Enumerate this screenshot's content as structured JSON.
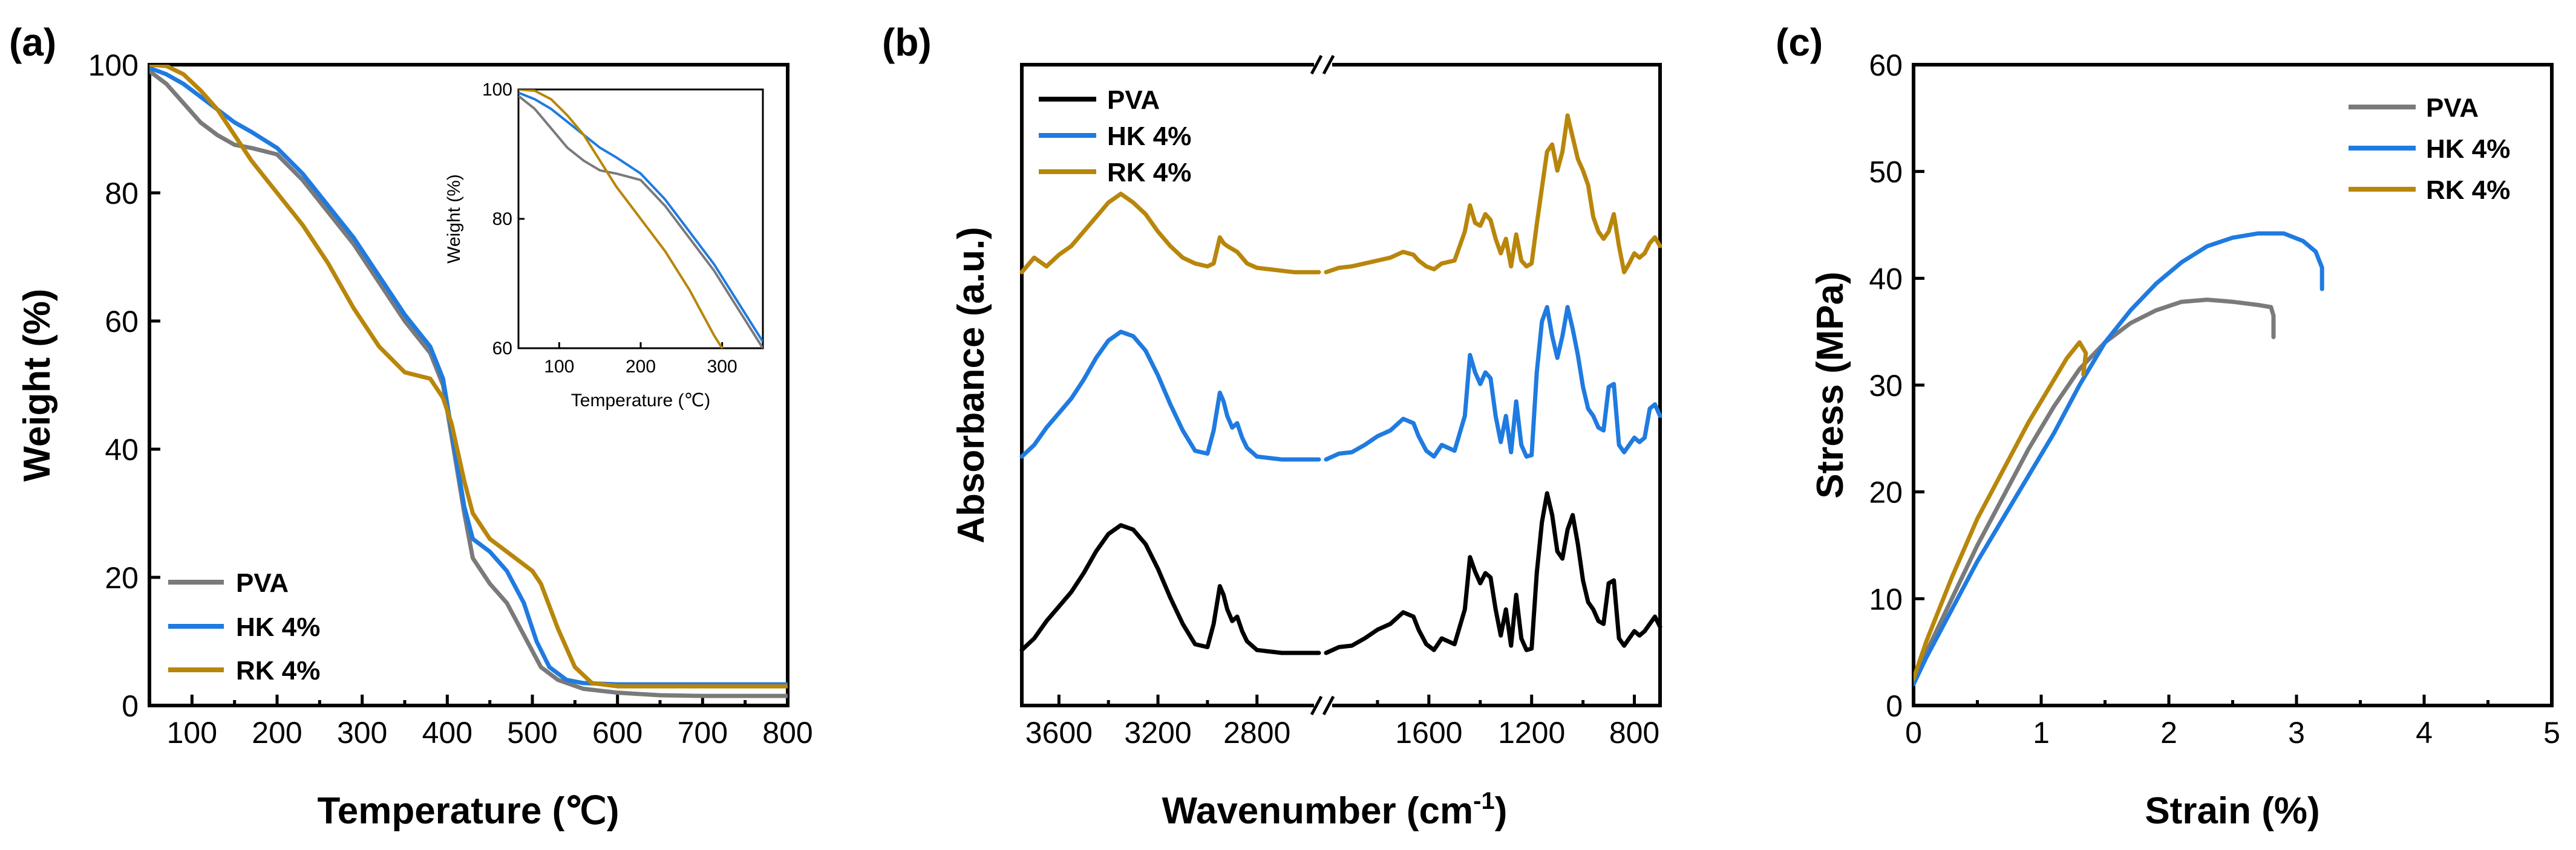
{
  "colors": {
    "PVA": "#7a7a7a",
    "HK": "#1f7be0",
    "RK": "#b8860b",
    "PVA_ftir": "#000000"
  },
  "chart_data": [
    {
      "panel_label": "(a)",
      "type": "line",
      "xlabel": "Temperature (℃)",
      "ylabel": "Weight (%)",
      "xlim": [
        50,
        800
      ],
      "ylim": [
        0,
        100
      ],
      "xticks": [
        100,
        200,
        300,
        400,
        500,
        600,
        700,
        800
      ],
      "yticks": [
        0,
        20,
        40,
        60,
        80,
        100
      ],
      "legend": [
        "PVA",
        "HK 4%",
        "RK 4%"
      ],
      "series": [
        {
          "name": "PVA",
          "x": [
            50,
            70,
            90,
            110,
            130,
            150,
            170,
            200,
            230,
            260,
            290,
            320,
            350,
            380,
            395,
            405,
            420,
            430,
            450,
            470,
            490,
            510,
            530,
            560,
            600,
            650,
            700,
            800
          ],
          "y": [
            99,
            97,
            94,
            91,
            89,
            87.5,
            87,
            86,
            82,
            77,
            72,
            66,
            60,
            55,
            50,
            42,
            30,
            23,
            19,
            16,
            11,
            6,
            4,
            2.6,
            2,
            1.6,
            1.5,
            1.5
          ]
        },
        {
          "name": "HK 4%",
          "x": [
            50,
            70,
            90,
            110,
            130,
            150,
            170,
            200,
            230,
            260,
            290,
            320,
            350,
            380,
            395,
            405,
            420,
            430,
            450,
            470,
            490,
            505,
            520,
            540,
            560,
            600,
            700,
            800
          ],
          "y": [
            99.5,
            98.5,
            97,
            95,
            93,
            91,
            89.5,
            87,
            83,
            78,
            73,
            67,
            61,
            56,
            51,
            43,
            31,
            26,
            24,
            21,
            16,
            10,
            6,
            4,
            3.5,
            3.3,
            3.3,
            3.3
          ]
        },
        {
          "name": "RK 4%",
          "x": [
            50,
            70,
            90,
            110,
            130,
            150,
            170,
            200,
            230,
            260,
            290,
            320,
            350,
            380,
            395,
            405,
            420,
            430,
            450,
            470,
            490,
            500,
            510,
            530,
            550,
            570,
            600,
            700,
            800
          ],
          "y": [
            100,
            99.8,
            98.5,
            96,
            93,
            89,
            85,
            80,
            75,
            69,
            62,
            56,
            52,
            51,
            48,
            44,
            35,
            30,
            26,
            24,
            22,
            21,
            19,
            12,
            6,
            3.5,
            3,
            3,
            3
          ]
        }
      ]
    },
    {
      "panel_label": "",
      "type": "line",
      "inset_of": "(a)",
      "xlabel": "Temperature (℃)",
      "ylabel": "Weight (%)",
      "xlim": [
        50,
        350
      ],
      "ylim": [
        60,
        100
      ],
      "xticks": [
        100,
        200,
        300
      ],
      "yticks": [
        60,
        80,
        100
      ],
      "series": [
        {
          "name": "PVA",
          "x": [
            50,
            70,
            90,
            110,
            130,
            150,
            170,
            200,
            230,
            260,
            290,
            320,
            350
          ],
          "y": [
            99,
            97,
            94,
            91,
            89,
            87.5,
            87,
            86,
            82,
            77,
            72,
            66,
            60
          ]
        },
        {
          "name": "HK 4%",
          "x": [
            50,
            70,
            90,
            110,
            130,
            150,
            170,
            200,
            230,
            260,
            290,
            320,
            350
          ],
          "y": [
            99.5,
            98.5,
            97,
            95,
            93,
            91,
            89.5,
            87,
            83,
            78,
            73,
            67,
            61
          ]
        },
        {
          "name": "RK 4%",
          "x": [
            50,
            70,
            90,
            110,
            130,
            150,
            170,
            200,
            230,
            260,
            290,
            320,
            350
          ],
          "y": [
            100,
            99.8,
            98.5,
            96,
            93,
            89,
            85,
            80,
            75,
            69,
            62,
            56,
            52
          ]
        }
      ]
    },
    {
      "panel_label": "(b)",
      "type": "line",
      "xlabel": "Wavenumber (cm",
      "xlabel_sup": "-1",
      "xlabel_end": ")",
      "ylabel": "Absorbance (a.u.)",
      "segments": [
        [
          3750,
          2550
        ],
        [
          2000,
          700
        ]
      ],
      "xticks": [
        3600,
        3200,
        2800,
        1600,
        1200,
        800
      ],
      "yticks": [],
      "legend": [
        "PVA",
        "HK 4%",
        "RK 4%"
      ],
      "series": [
        {
          "name": "PVA",
          "baseline": 0,
          "x": [
            3750,
            3700,
            3650,
            3600,
            3550,
            3500,
            3450,
            3400,
            3350,
            3300,
            3250,
            3200,
            3150,
            3100,
            3050,
            3000,
            2975,
            2950,
            2935,
            2920,
            2900,
            2880,
            2860,
            2840,
            2800,
            2750,
            2700,
            2650,
            2600,
            2550,
            2000,
            1950,
            1900,
            1850,
            1800,
            1750,
            1700,
            1660,
            1640,
            1610,
            1580,
            1550,
            1500,
            1460,
            1440,
            1420,
            1400,
            1380,
            1360,
            1340,
            1320,
            1300,
            1280,
            1260,
            1240,
            1220,
            1200,
            1180,
            1160,
            1140,
            1120,
            1100,
            1080,
            1060,
            1040,
            1020,
            1000,
            980,
            960,
            940,
            920,
            900,
            880,
            860,
            840,
            820,
            800,
            780,
            760,
            740,
            720,
            700
          ],
          "y": [
            0.02,
            0.1,
            0.22,
            0.32,
            0.42,
            0.55,
            0.7,
            0.82,
            0.88,
            0.85,
            0.75,
            0.58,
            0.38,
            0.2,
            0.06,
            0.04,
            0.2,
            0.46,
            0.4,
            0.3,
            0.22,
            0.25,
            0.15,
            0.08,
            0.02,
            0.01,
            0,
            0,
            0,
            0,
            0,
            0.04,
            0.05,
            0.1,
            0.16,
            0.2,
            0.28,
            0.25,
            0.16,
            0.06,
            0.02,
            0.1,
            0.06,
            0.3,
            0.66,
            0.56,
            0.48,
            0.55,
            0.52,
            0.3,
            0.12,
            0.3,
            0.05,
            0.4,
            0.1,
            0.02,
            0.03,
            0.55,
            0.9,
            1.1,
            0.95,
            0.7,
            0.65,
            0.85,
            0.95,
            0.75,
            0.5,
            0.35,
            0.3,
            0.22,
            0.2,
            0.48,
            0.5,
            0.1,
            0.05,
            0.1,
            0.15,
            0.12,
            0.15,
            0.2,
            0.25,
            0.18
          ]
        },
        {
          "name": "HK 4%",
          "baseline": 1,
          "x": [
            3750,
            3700,
            3650,
            3600,
            3550,
            3500,
            3450,
            3400,
            3350,
            3300,
            3250,
            3200,
            3150,
            3100,
            3050,
            3000,
            2975,
            2950,
            2935,
            2920,
            2900,
            2880,
            2860,
            2840,
            2800,
            2750,
            2700,
            2650,
            2600,
            2550,
            2000,
            1950,
            1900,
            1850,
            1800,
            1750,
            1700,
            1660,
            1640,
            1610,
            1580,
            1550,
            1500,
            1460,
            1440,
            1420,
            1400,
            1380,
            1360,
            1340,
            1320,
            1300,
            1280,
            1260,
            1240,
            1220,
            1200,
            1180,
            1160,
            1140,
            1120,
            1100,
            1080,
            1060,
            1040,
            1020,
            1000,
            980,
            960,
            940,
            920,
            900,
            880,
            860,
            840,
            820,
            800,
            780,
            760,
            740,
            720,
            700
          ],
          "y": [
            0.02,
            0.1,
            0.22,
            0.32,
            0.42,
            0.55,
            0.7,
            0.82,
            0.88,
            0.85,
            0.75,
            0.58,
            0.38,
            0.2,
            0.06,
            0.04,
            0.2,
            0.46,
            0.4,
            0.3,
            0.22,
            0.25,
            0.15,
            0.08,
            0.02,
            0.01,
            0,
            0,
            0,
            0,
            0,
            0.04,
            0.05,
            0.1,
            0.16,
            0.2,
            0.28,
            0.25,
            0.16,
            0.06,
            0.02,
            0.1,
            0.06,
            0.3,
            0.72,
            0.6,
            0.52,
            0.6,
            0.56,
            0.3,
            0.12,
            0.3,
            0.05,
            0.4,
            0.1,
            0.02,
            0.03,
            0.6,
            0.95,
            1.05,
            0.85,
            0.7,
            0.85,
            1.05,
            0.9,
            0.72,
            0.5,
            0.35,
            0.3,
            0.22,
            0.2,
            0.5,
            0.52,
            0.1,
            0.05,
            0.1,
            0.15,
            0.12,
            0.15,
            0.35,
            0.38,
            0.3
          ]
        },
        {
          "name": "RK 4%",
          "baseline": 2,
          "x": [
            3750,
            3700,
            3650,
            3600,
            3550,
            3500,
            3450,
            3400,
            3350,
            3300,
            3250,
            3200,
            3150,
            3100,
            3050,
            3000,
            2975,
            2950,
            2935,
            2920,
            2900,
            2880,
            2860,
            2840,
            2800,
            2750,
            2700,
            2650,
            2600,
            2550,
            2000,
            1950,
            1900,
            1850,
            1800,
            1750,
            1700,
            1660,
            1640,
            1610,
            1580,
            1550,
            1500,
            1460,
            1440,
            1420,
            1400,
            1380,
            1360,
            1340,
            1320,
            1300,
            1280,
            1260,
            1240,
            1220,
            1200,
            1180,
            1160,
            1140,
            1120,
            1100,
            1080,
            1060,
            1040,
            1020,
            1000,
            980,
            960,
            940,
            920,
            900,
            880,
            860,
            840,
            820,
            800,
            780,
            760,
            740,
            720,
            700
          ],
          "y": [
            0.02,
            0.12,
            0.06,
            0.14,
            0.2,
            0.3,
            0.4,
            0.5,
            0.56,
            0.5,
            0.42,
            0.3,
            0.2,
            0.12,
            0.08,
            0.06,
            0.08,
            0.26,
            0.22,
            0.2,
            0.18,
            0.16,
            0.12,
            0.08,
            0.05,
            0.04,
            0.03,
            0.02,
            0.02,
            0.02,
            0.02,
            0.05,
            0.06,
            0.08,
            0.1,
            0.12,
            0.16,
            0.14,
            0.1,
            0.06,
            0.04,
            0.08,
            0.1,
            0.3,
            0.48,
            0.36,
            0.34,
            0.42,
            0.38,
            0.25,
            0.15,
            0.25,
            0.06,
            0.28,
            0.1,
            0.06,
            0.08,
            0.35,
            0.6,
            0.85,
            0.9,
            0.72,
            0.85,
            1.1,
            0.95,
            0.8,
            0.72,
            0.62,
            0.4,
            0.3,
            0.25,
            0.3,
            0.42,
            0.2,
            0.02,
            0.08,
            0.15,
            0.12,
            0.15,
            0.22,
            0.26,
            0.2
          ]
        }
      ]
    },
    {
      "panel_label": "(c)",
      "type": "line",
      "xlabel": "Strain (%)",
      "ylabel": "Stress (MPa)",
      "xlim": [
        0,
        5
      ],
      "ylim": [
        0,
        60
      ],
      "xticks": [
        0,
        1,
        2,
        3,
        4,
        5
      ],
      "yticks": [
        0,
        10,
        20,
        30,
        40,
        50,
        60
      ],
      "legend": [
        "PVA",
        "HK 4%",
        "RK 4%"
      ],
      "series": [
        {
          "name": "PVA",
          "x": [
            0,
            0.1,
            0.3,
            0.5,
            0.7,
            0.9,
            1.1,
            1.3,
            1.5,
            1.7,
            1.9,
            2.1,
            2.3,
            2.5,
            2.7,
            2.8,
            2.82,
            2.82
          ],
          "y": [
            2,
            5,
            10,
            15,
            19.5,
            24,
            28,
            31.5,
            34,
            35.8,
            37,
            37.8,
            38,
            37.8,
            37.5,
            37.3,
            36.5,
            34.5
          ]
        },
        {
          "name": "HK 4%",
          "x": [
            0,
            0.1,
            0.3,
            0.5,
            0.7,
            0.9,
            1.1,
            1.3,
            1.5,
            1.7,
            1.9,
            2.1,
            2.3,
            2.5,
            2.7,
            2.9,
            3.05,
            3.15,
            3.2,
            3.2
          ],
          "y": [
            2,
            4.5,
            9,
            13.5,
            17.5,
            21.5,
            25.5,
            30,
            34,
            37,
            39.5,
            41.5,
            43,
            43.8,
            44.2,
            44.2,
            43.5,
            42.5,
            41,
            39
          ]
        },
        {
          "name": "RK 4%",
          "x": [
            0,
            0.1,
            0.3,
            0.5,
            0.7,
            0.9,
            1.1,
            1.2,
            1.3,
            1.35,
            1.33
          ],
          "y": [
            2.5,
            6,
            12,
            17.5,
            22,
            26.5,
            30.5,
            32.5,
            34,
            33,
            31
          ]
        }
      ]
    }
  ]
}
